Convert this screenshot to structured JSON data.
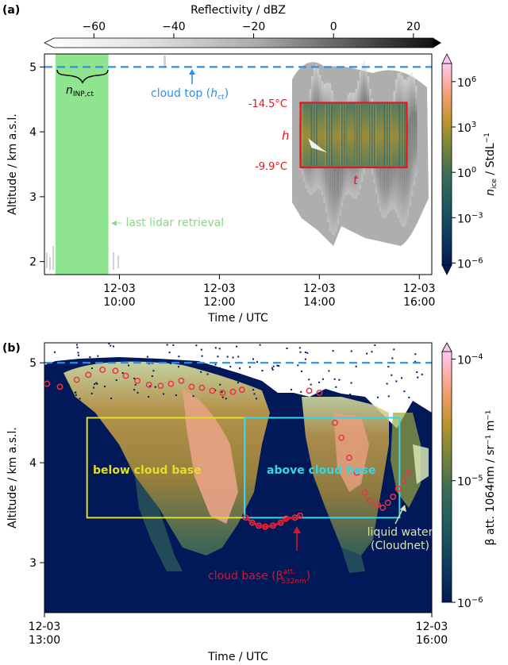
{
  "chart_data": [
    {
      "panel_label": "(a)",
      "type": "heatmap",
      "xlabel": "Time / UTC",
      "ylabel": "Altitude / km a.s.l.",
      "x_range": [
        "12-03 08:30",
        "12-03 16:15"
      ],
      "ylim": [
        1.8,
        5.2
      ],
      "x_ticks": [
        {
          "date": "12-03",
          "time": "10:00",
          "hour": 10
        },
        {
          "date": "12-03",
          "time": "12:00",
          "hour": 12
        },
        {
          "date": "12-03",
          "time": "14:00",
          "hour": 14
        },
        {
          "date": "12-03",
          "time": "16:00",
          "hour": 16
        }
      ],
      "y_ticks": [
        "2",
        "3",
        "4",
        "5"
      ],
      "y_tick_values": [
        2,
        3,
        4,
        5
      ],
      "top_colorbar": {
        "label": "Reflectivity / dBZ",
        "range": [
          -70,
          25
        ],
        "ticks": [
          "−60",
          "−40",
          "−20",
          "0",
          "20"
        ],
        "tick_values": [
          -60,
          -40,
          -20,
          0,
          20
        ]
      },
      "right_colorbar": {
        "label_main": "n",
        "label_sub": "ice",
        "label_rest": " / StdL",
        "label_sup": "−1",
        "ticks": [
          {
            "base": "10",
            "exp": "6",
            "position": 0.91
          },
          {
            "base": "10",
            "exp": "3",
            "position": 0.685
          },
          {
            "base": "10",
            "exp": "0",
            "position": 0.46
          },
          {
            "base": "10",
            "exp": "−3",
            "position": 0.235
          },
          {
            "base": "10",
            "exp": "−6",
            "position": 0.01
          }
        ]
      },
      "cloud_top_altitude": 5.0,
      "green_band_hours": [
        8.72,
        9.78
      ],
      "red_box": {
        "hour_start": 13.62,
        "hour_end": 15.75,
        "alt_low": 3.45,
        "alt_high": 4.45
      },
      "annotations": {
        "n_inp_main": "n",
        "n_inp_sub": "INP,ct",
        "cloud_top_pre": "cloud top (",
        "cloud_top_var": "h",
        "cloud_top_sub": "ct",
        "cloud_top_post": ")",
        "last_lidar": "◂– last lidar retrieval",
        "temp_top": "-14.5°C",
        "temp_bottom": "-9.9°C",
        "h_letter": "h",
        "t_letter": "t"
      }
    },
    {
      "panel_label": "(b)",
      "type": "heatmap",
      "xlabel": "Time / UTC",
      "ylabel": "Altitude / km a.s.l.",
      "x_range": [
        "12-03 13:00",
        "12-03 16:00"
      ],
      "ylim": [
        2.5,
        5.2
      ],
      "x_ticks": [
        {
          "date": "12-03",
          "time": "13:00",
          "hour": 13
        },
        {
          "date": "12-03",
          "time": "16:00",
          "hour": 16
        }
      ],
      "y_ticks": [
        "3",
        "4",
        "5"
      ],
      "y_tick_values": [
        3,
        4,
        5
      ],
      "right_colorbar": {
        "label": "β att. 1064nm / sr⁻¹ m⁻¹",
        "ticks": [
          {
            "base": "10",
            "exp": "−4",
            "position": 0.97
          },
          {
            "base": "10",
            "exp": "−5",
            "position": 0.485
          },
          {
            "base": "10",
            "exp": "−6",
            "position": 0.0
          }
        ]
      },
      "cloud_top_altitude": 5.0,
      "yellow_box": {
        "hour_start": 13.33,
        "hour_end": 14.55,
        "alt_low": 3.45,
        "alt_high": 4.45
      },
      "cyan_box": {
        "hour_start": 14.55,
        "hour_end": 15.75,
        "alt_low": 3.45,
        "alt_high": 4.45
      },
      "annotations": {
        "below": "below cloud base",
        "above": "above cloud base",
        "liquid1": "liquid water",
        "liquid2": "(Cloudnet)",
        "cloud_base": "cloud base (β",
        "cloud_base_sup": "att.",
        "cloud_base_sub": "532nm",
        "cloud_base_post": ")"
      },
      "cloud_base_points": [
        [
          13.02,
          4.79
        ],
        [
          13.12,
          4.76
        ],
        [
          13.25,
          4.83
        ],
        [
          13.34,
          4.88
        ],
        [
          13.45,
          4.93
        ],
        [
          13.55,
          4.92
        ],
        [
          13.63,
          4.87
        ],
        [
          13.72,
          4.82
        ],
        [
          13.81,
          4.78
        ],
        [
          13.9,
          4.77
        ],
        [
          13.98,
          4.79
        ],
        [
          14.06,
          4.82
        ],
        [
          14.14,
          4.76
        ],
        [
          14.22,
          4.75
        ],
        [
          14.3,
          4.72
        ],
        [
          14.38,
          4.7
        ],
        [
          14.46,
          4.71
        ],
        [
          14.53,
          4.73
        ],
        [
          14.56,
          3.45
        ],
        [
          14.61,
          3.4
        ],
        [
          14.66,
          3.37
        ],
        [
          14.71,
          3.36
        ],
        [
          14.77,
          3.37
        ],
        [
          14.83,
          3.4
        ],
        [
          14.87,
          3.44
        ],
        [
          14.94,
          3.45
        ],
        [
          14.98,
          3.47
        ],
        [
          15.05,
          4.72
        ],
        [
          15.13,
          4.7
        ],
        [
          15.25,
          4.4
        ],
        [
          15.3,
          4.25
        ],
        [
          15.36,
          4.05
        ],
        [
          15.42,
          3.9
        ],
        [
          15.48,
          3.7
        ],
        [
          15.52,
          3.62
        ],
        [
          15.58,
          3.58
        ],
        [
          15.62,
          3.55
        ],
        [
          15.66,
          3.6
        ],
        [
          15.7,
          3.66
        ],
        [
          15.74,
          3.74
        ],
        [
          15.78,
          3.82
        ],
        [
          15.82,
          3.9
        ]
      ]
    }
  ]
}
